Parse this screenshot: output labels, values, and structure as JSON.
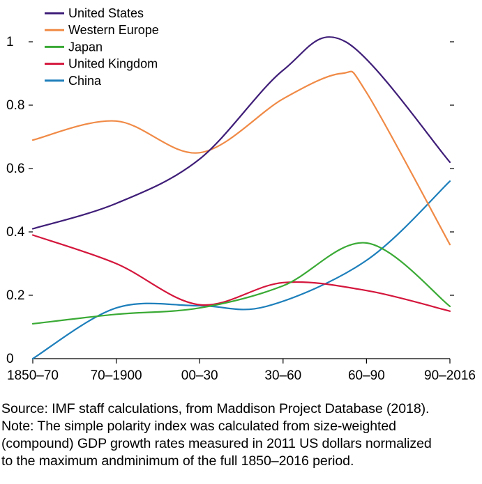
{
  "chart_data": {
    "type": "line",
    "title": "",
    "xlabel": "",
    "ylabel": "",
    "categories": [
      "1850–70",
      "70–1900",
      "00–30",
      "30–60",
      "60–90",
      "90–2016"
    ],
    "ylim": [
      0,
      1
    ],
    "yticks": [
      0,
      0.2,
      0.4,
      0.6,
      0.8,
      1
    ],
    "ytick_labels": [
      "0",
      "0.2",
      "0.4",
      "0.6",
      "0.8",
      "1"
    ],
    "legend_position": "top-left",
    "grid": false,
    "series": [
      {
        "name": "United States",
        "color": "#3f1e78",
        "points": [
          [
            0,
            0.41
          ],
          [
            1,
            0.49
          ],
          [
            2,
            0.63
          ],
          [
            3,
            0.91
          ],
          [
            3.75,
            1.0
          ],
          [
            5,
            0.62
          ]
        ]
      },
      {
        "name": "Western Europe",
        "color": "#f08a46",
        "points": [
          [
            0,
            0.69
          ],
          [
            1,
            0.75
          ],
          [
            2,
            0.65
          ],
          [
            3,
            0.82
          ],
          [
            3.7,
            0.9
          ],
          [
            4,
            0.84
          ],
          [
            5,
            0.36
          ]
        ]
      },
      {
        "name": "Japan",
        "color": "#3aaa35",
        "points": [
          [
            0,
            0.11
          ],
          [
            1,
            0.14
          ],
          [
            2,
            0.16
          ],
          [
            3,
            0.23
          ],
          [
            4,
            0.365
          ],
          [
            5,
            0.165
          ]
        ]
      },
      {
        "name": "United Kingdom",
        "color": "#d4163c",
        "points": [
          [
            0,
            0.39
          ],
          [
            1,
            0.3
          ],
          [
            2,
            0.17
          ],
          [
            3,
            0.24
          ],
          [
            4,
            0.215
          ],
          [
            5,
            0.15
          ]
        ]
      },
      {
        "name": "China",
        "color": "#1d7fbb",
        "points": [
          [
            0,
            0.0
          ],
          [
            1,
            0.16
          ],
          [
            2,
            0.167
          ],
          [
            2.8,
            0.165
          ],
          [
            4,
            0.31
          ],
          [
            5,
            0.56
          ]
        ]
      }
    ]
  },
  "notes": {
    "line1": "Source: IMF staff calculations, from Maddison Project Database (2018).",
    "line2": "Note: The simple polarity index was calculated from size-weighted",
    "line3": "(compound) GDP growth rates measured in 2011 US dollars normalized",
    "line4": "to the maximum andminimum of the full 1850–2016 period."
  }
}
